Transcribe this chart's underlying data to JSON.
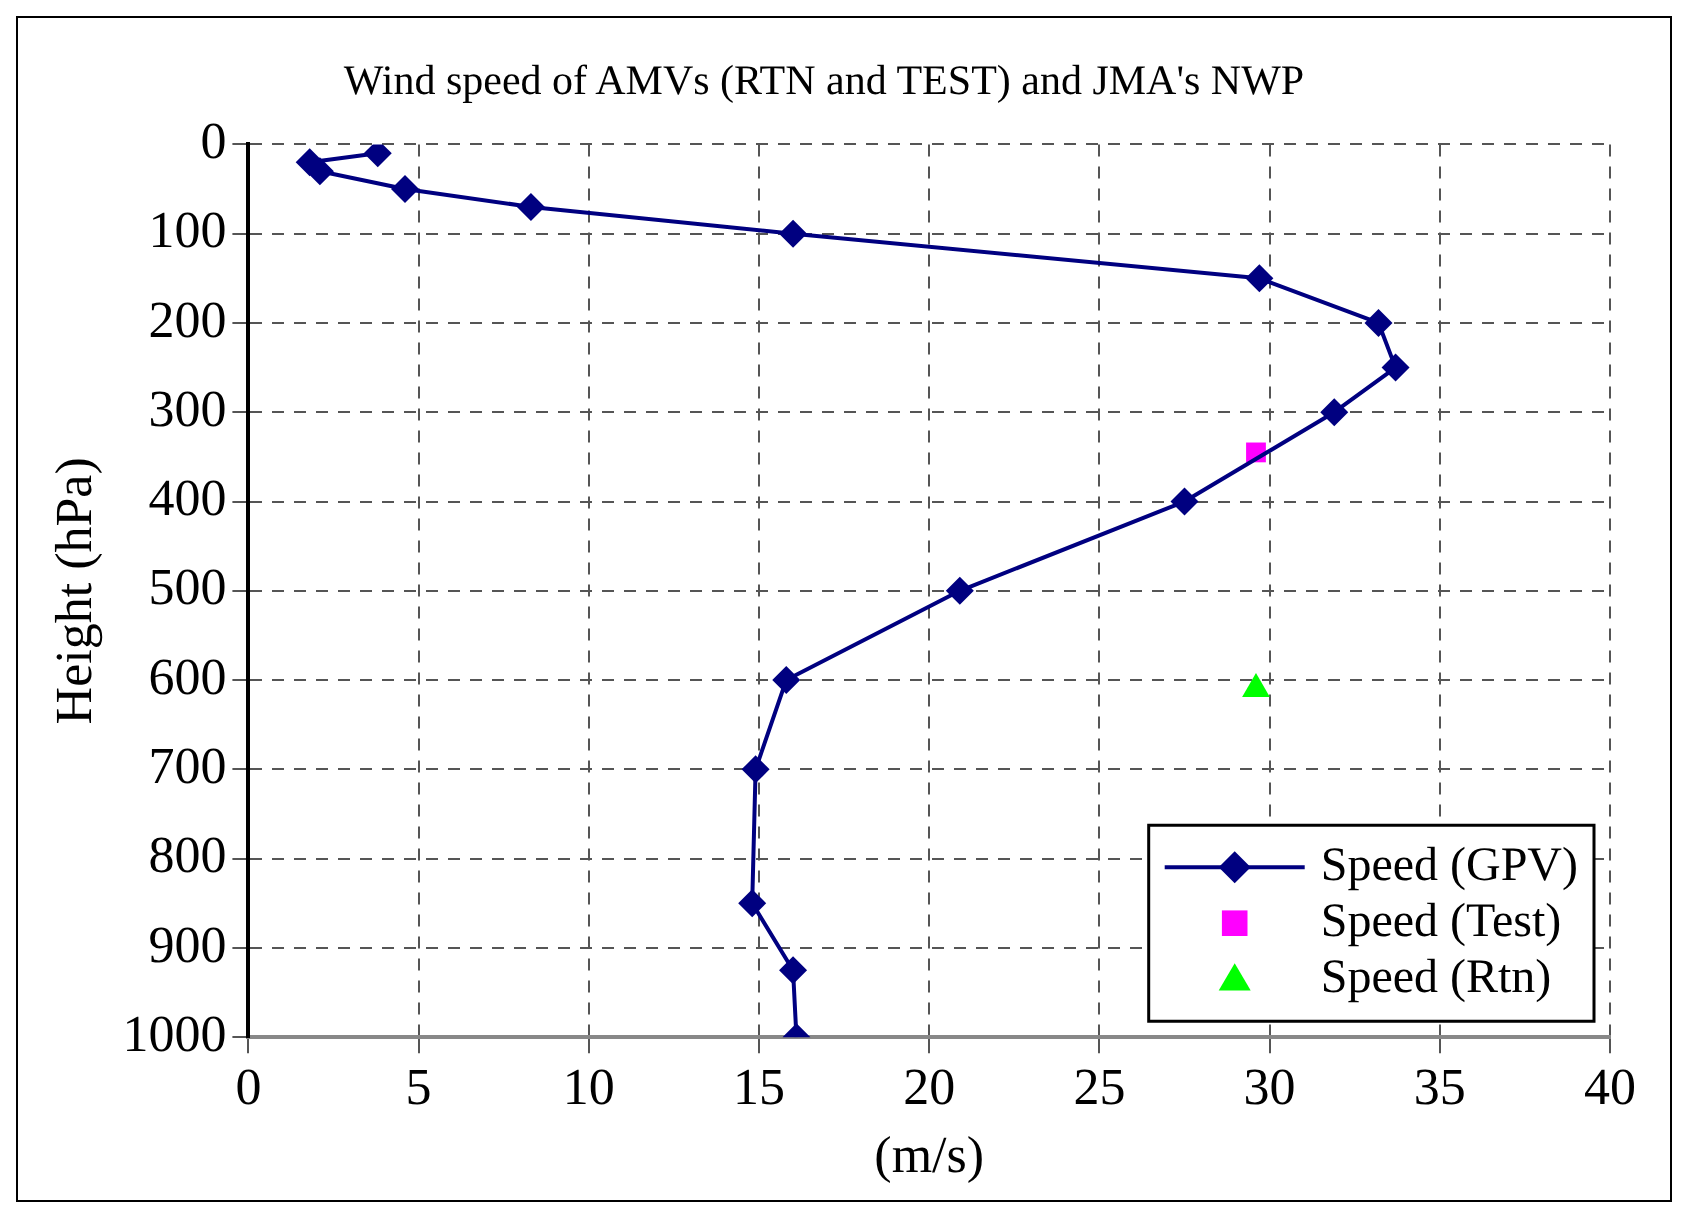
{
  "chart_data": {
    "type": "line",
    "title": "Wind speed of AMVs (RTN and TEST) and JMA's NWP",
    "xlabel": "(m/s)",
    "ylabel": "Height (hPa)",
    "xlim": [
      0,
      40
    ],
    "xticks": [
      0,
      5,
      10,
      15,
      20,
      25,
      30,
      35,
      40
    ],
    "ylim": [
      1000,
      0
    ],
    "yticks": [
      0,
      100,
      200,
      300,
      400,
      500,
      600,
      700,
      800,
      900,
      1000
    ],
    "grid": true,
    "legend": "bottom right",
    "series": [
      {
        "name": "Speed (GPV)",
        "type": "line",
        "marker": "diamond",
        "line_style": "solid",
        "color": "#000080",
        "x": [
          3.8,
          1.8,
          2.1,
          4.6,
          8.3,
          16.0,
          29.7,
          33.2,
          33.7,
          31.9,
          27.5,
          20.9,
          15.8,
          14.9,
          14.8,
          16.0,
          16.1
        ],
        "values": [
          10,
          20,
          30,
          50,
          70,
          100,
          150,
          200,
          250,
          300,
          400,
          500,
          600,
          700,
          850,
          925,
          1000
        ]
      },
      {
        "name": "Speed (Test)",
        "type": "scatter",
        "marker": "square",
        "color": "#ff00ff",
        "x": [
          29.6
        ],
        "values": [
          345
        ]
      },
      {
        "name": "Speed (Rtn)",
        "type": "scatter",
        "marker": "triangle",
        "color": "#00ff00",
        "x": [
          29.6
        ],
        "values": [
          610
        ]
      }
    ]
  }
}
